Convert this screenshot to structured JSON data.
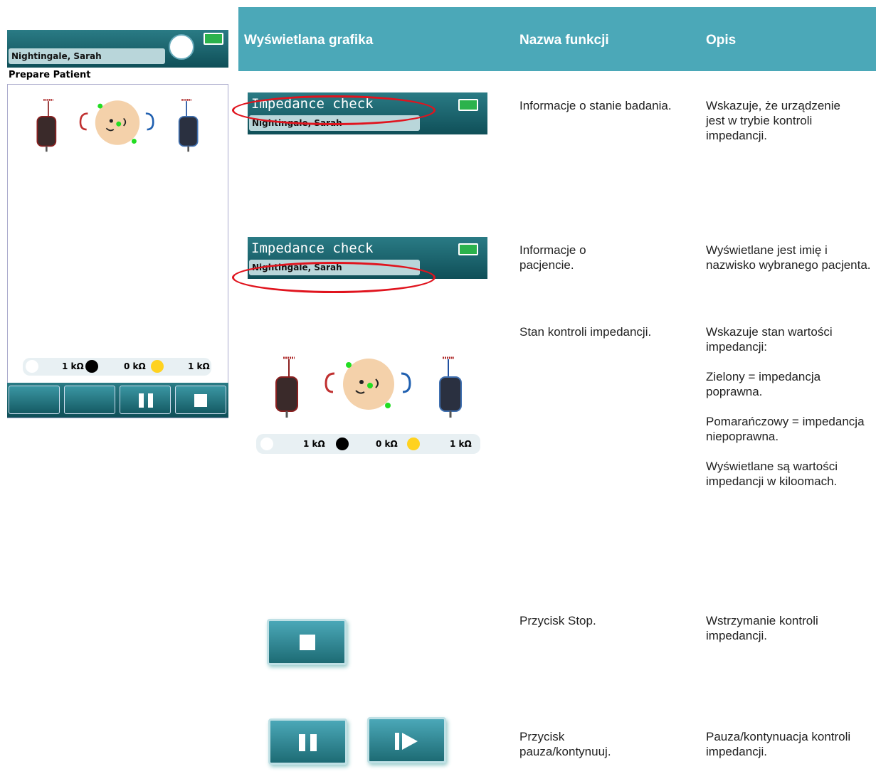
{
  "device": {
    "patient": "Nightingale, Sarah",
    "screen": "Prepare Patient",
    "impedance": [
      "1 kΩ",
      "0 kΩ",
      "1 kΩ"
    ]
  },
  "table": {
    "headers": [
      "Wyświetlana grafika",
      "Nazwa funkcji",
      "Opis"
    ],
    "rows": [
      {
        "graphic": {
          "title": "Impedance check",
          "patient": "Nightingale, Sarah"
        },
        "name": "Informacje o stanie badania.",
        "description": [
          "Wskazuje, że urządzenie jest w trybie kontroli impedancji."
        ]
      },
      {
        "graphic": {
          "title": "Impedance check",
          "patient": "Nightingale, Sarah"
        },
        "name": "Informacje o pacjencie.",
        "description": [
          "Wyświetlane jest imię i nazwisko wybranego pacjenta."
        ]
      },
      {
        "graphic": {
          "impedance": [
            "1 kΩ",
            "0 kΩ",
            "1 kΩ"
          ]
        },
        "name": "Stan kontroli impedancji.",
        "description": [
          "Wskazuje stan wartości impedancji:",
          "Zielony = impedancja poprawna.",
          "Pomarańczowy = impedancja niepoprawna.",
          "Wyświetlane są wartości impedancji w kiloomach."
        ]
      },
      {
        "name": "Przycisk Stop.",
        "description": [
          "Wstrzymanie kontroli impedancji."
        ]
      },
      {
        "name": "Przycisk pauza/kontynuuj.",
        "description": [
          "Pauza/kontynuacja kontroli impedancji."
        ]
      }
    ]
  }
}
